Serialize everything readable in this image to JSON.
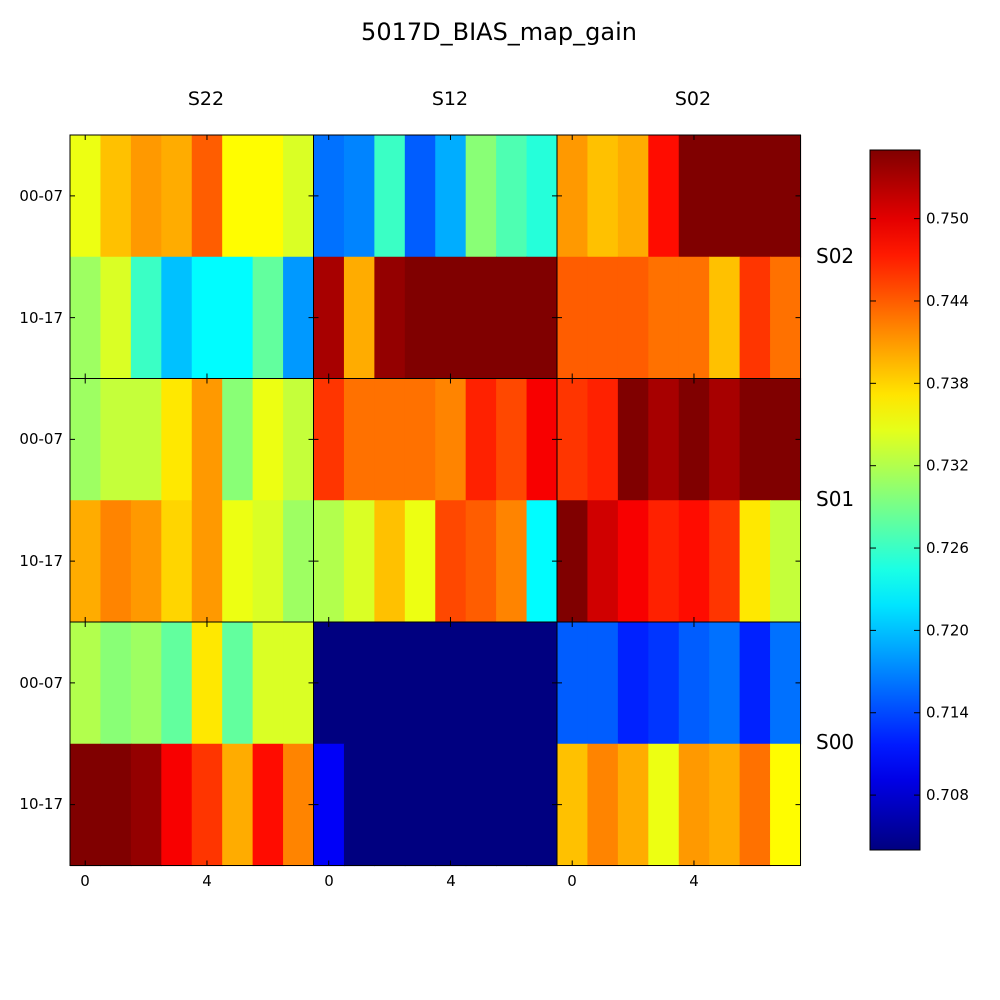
{
  "chart_data": {
    "type": "heatmap",
    "title": "5017D_BIAS_map_gain",
    "column_groups": [
      "S22",
      "S12",
      "S02"
    ],
    "row_groups": [
      "S02",
      "S01",
      "S00"
    ],
    "row_sublabels": [
      "00-07",
      "10-17"
    ],
    "x_ticks": [
      "0",
      "4"
    ],
    "x_tick_positions": [
      0,
      4
    ],
    "colorbar": {
      "min": 0.704,
      "max": 0.755,
      "ticks": [
        "0.708",
        "0.714",
        "0.720",
        "0.726",
        "0.732",
        "0.738",
        "0.744",
        "0.750"
      ],
      "colormap": "jet"
    },
    "grid": [
      [
        [
          [
            0.735,
            0.739,
            0.741,
            0.74,
            0.744,
            0.736,
            0.736,
            0.734
          ],
          [
            0.731,
            0.734,
            0.726,
            0.72,
            0.723,
            0.723,
            0.728,
            0.718
          ]
        ],
        [
          [
            0.716,
            0.717,
            0.726,
            0.715,
            0.719,
            0.73,
            0.727,
            0.725
          ],
          [
            0.753,
            0.74,
            0.754,
            0.755,
            0.755,
            0.755,
            0.755,
            0.755
          ]
        ],
        [
          [
            0.741,
            0.739,
            0.74,
            0.748,
            0.755,
            0.755,
            0.755,
            0.755
          ],
          [
            0.744,
            0.744,
            0.744,
            0.743,
            0.743,
            0.739,
            0.746,
            0.743
          ]
        ]
      ],
      [
        [
          [
            0.731,
            0.733,
            0.733,
            0.737,
            0.741,
            0.73,
            0.735,
            0.733
          ],
          [
            0.74,
            0.742,
            0.741,
            0.738,
            0.741,
            0.735,
            0.734,
            0.731
          ]
        ],
        [
          [
            0.746,
            0.743,
            0.743,
            0.743,
            0.742,
            0.747,
            0.745,
            0.749
          ],
          [
            0.732,
            0.734,
            0.739,
            0.735,
            0.745,
            0.744,
            0.742,
            0.723
          ]
        ],
        [
          [
            0.746,
            0.747,
            0.755,
            0.753,
            0.755,
            0.753,
            0.755,
            0.755
          ],
          [
            0.755,
            0.751,
            0.749,
            0.747,
            0.748,
            0.746,
            0.737,
            0.733
          ]
        ]
      ],
      [
        [
          [
            0.732,
            0.73,
            0.731,
            0.728,
            0.737,
            0.728,
            0.734,
            0.734
          ],
          [
            0.755,
            0.755,
            0.754,
            0.749,
            0.746,
            0.74,
            0.748,
            0.742
          ]
        ],
        [
          [
            0.704,
            0.704,
            0.704,
            0.704,
            0.704,
            0.704,
            0.704,
            0.704
          ],
          [
            0.71,
            0.704,
            0.704,
            0.704,
            0.704,
            0.704,
            0.704,
            0.704
          ]
        ],
        [
          [
            0.715,
            0.715,
            0.712,
            0.713,
            0.715,
            0.716,
            0.712,
            0.716
          ],
          [
            0.739,
            0.742,
            0.74,
            0.735,
            0.741,
            0.74,
            0.743,
            0.736
          ]
        ]
      ]
    ]
  }
}
